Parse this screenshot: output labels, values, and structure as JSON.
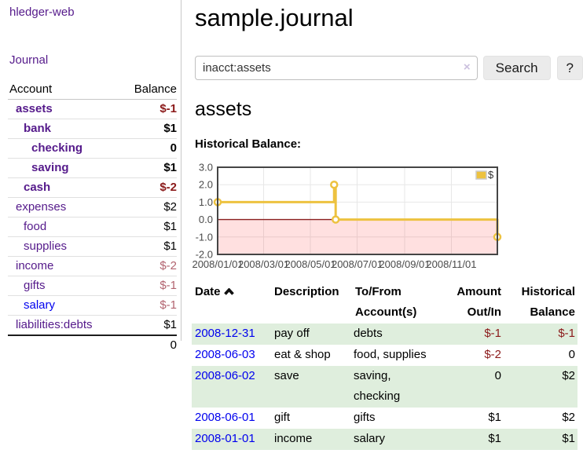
{
  "sidebar": {
    "app_title": "hledger-web",
    "journal_link": "Journal",
    "accounts_header": {
      "account": "Account",
      "balance": "Balance"
    },
    "accounts": [
      {
        "name": "assets",
        "level": 0,
        "bold": true,
        "balance": "$-1"
      },
      {
        "name": "bank",
        "level": 1,
        "bold": true,
        "balance": "$1"
      },
      {
        "name": "checking",
        "level": 2,
        "bold": true,
        "balance": "0"
      },
      {
        "name": "saving",
        "level": 2,
        "bold": true,
        "balance": "$1"
      },
      {
        "name": "cash",
        "level": 1,
        "bold": true,
        "balance": "$-2"
      },
      {
        "name": "expenses",
        "level": 0,
        "bold": false,
        "balance": "$2"
      },
      {
        "name": "food",
        "level": 1,
        "bold": false,
        "balance": "$1"
      },
      {
        "name": "supplies",
        "level": 1,
        "bold": false,
        "balance": "$1"
      },
      {
        "name": "income",
        "level": 0,
        "bold": false,
        "balance": "$-2"
      },
      {
        "name": "gifts",
        "level": 1,
        "bold": false,
        "balance": "$-1"
      },
      {
        "name": "salary",
        "level": 1,
        "bold": false,
        "balance": "$-1",
        "unvisited": true
      },
      {
        "name": "liabilities:debts",
        "level": 0,
        "bold": false,
        "balance": "$1"
      }
    ],
    "total": "0"
  },
  "main": {
    "title": "sample.journal",
    "search": {
      "value": "inacct:assets",
      "button_label": "Search",
      "help_label": "?",
      "clear_icon": "×"
    },
    "account_heading": "assets",
    "chart_title": "Historical Balance:",
    "register": {
      "columns": [
        "Date",
        "Description",
        "To/From Account(s)",
        "Amount Out/In",
        "Historical Balance"
      ],
      "rows": [
        {
          "date": "2008-12-31",
          "description": "pay off",
          "accounts": "debts",
          "amount": "$-1",
          "balance": "$-1"
        },
        {
          "date": "2008-06-03",
          "description": "eat & shop",
          "accounts": "food, supplies",
          "amount": "$-2",
          "balance": "0"
        },
        {
          "date": "2008-06-02",
          "description": "save",
          "accounts": "saving, checking",
          "amount": "0",
          "balance": "$2"
        },
        {
          "date": "2008-06-01",
          "description": "gift",
          "accounts": "gifts",
          "amount": "$1",
          "balance": "$2"
        },
        {
          "date": "2008-01-01",
          "description": "income",
          "accounts": "salary",
          "amount": "$1",
          "balance": "$1"
        }
      ]
    }
  },
  "chart_data": {
    "type": "line",
    "title": "Historical Balance:",
    "step": true,
    "series": [
      {
        "name": "$",
        "color": "#EDC240",
        "points": [
          [
            "2008-01-01",
            1
          ],
          [
            "2008-06-01",
            2
          ],
          [
            "2008-06-03",
            0
          ],
          [
            "2008-12-31",
            -1
          ]
        ]
      }
    ],
    "xlim": [
      "2008-01-01",
      "2008-12-31"
    ],
    "ylim": [
      -2,
      3
    ],
    "x_ticks": [
      {
        "date": "2008-01-01",
        "label": "2008/01/01"
      },
      {
        "date": "2008-03-01",
        "label": "2008/03/01"
      },
      {
        "date": "2008-05-01",
        "label": "2008/05/01"
      },
      {
        "date": "2008-07-01",
        "label": "2008/07/01"
      },
      {
        "date": "2008-09-01",
        "label": "2008/09/01"
      },
      {
        "date": "2008-11-01",
        "label": "2008/11/01"
      }
    ],
    "y_ticks": [
      {
        "value": 3,
        "label": "3.0"
      },
      {
        "value": 2,
        "label": "2.0"
      },
      {
        "value": 1,
        "label": "1.0"
      },
      {
        "value": 0,
        "label": "0.0"
      },
      {
        "value": -1,
        "label": "-1.0"
      },
      {
        "value": -2,
        "label": "-2.0"
      }
    ],
    "grid": true,
    "legend_position": "top-right",
    "negative_fill": "rgba(255,0,0,0.12)",
    "zero_line_color": "#8b2020"
  },
  "colors": {
    "link_purple": "#551a8b",
    "link_blue": "#0000ee",
    "neg_strong": "#8b1a1a",
    "neg_soft": "#b2636f",
    "row_green": "#dfeedd",
    "accent_yellow": "#EDC240"
  }
}
